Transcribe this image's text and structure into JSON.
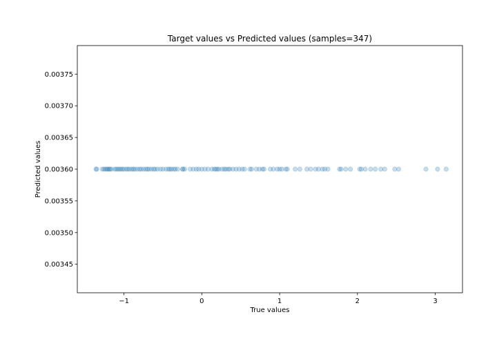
{
  "chart_data": {
    "type": "scatter",
    "title": "Target values vs Predicted values (samples=347)",
    "xlabel": "True values",
    "ylabel": "Predicted values",
    "xlim": [
      -1.6,
      3.35
    ],
    "ylim": [
      0.003405,
      0.003795
    ],
    "xticks": [
      -1,
      0,
      1,
      2,
      3
    ],
    "xtick_labels": [
      "−1",
      "0",
      "1",
      "2",
      "3"
    ],
    "yticks": [
      0.00345,
      0.0035,
      0.00355,
      0.0036,
      0.00365,
      0.0037,
      0.00375
    ],
    "ytick_labels": [
      "0.00345",
      "0.00350",
      "0.00355",
      "0.00360",
      "0.00365",
      "0.00370",
      "0.00375"
    ],
    "grid": false,
    "marker_color": "#1f77b4",
    "marker_alpha": 0.25,
    "points": [
      {
        "x": -1.36,
        "y": 0.0036
      },
      {
        "x": -1.35,
        "y": 0.0036
      },
      {
        "x": -1.28,
        "y": 0.0036
      },
      {
        "x": -1.26,
        "y": 0.0036
      },
      {
        "x": -1.24,
        "y": 0.0036
      },
      {
        "x": -1.22,
        "y": 0.0036
      },
      {
        "x": -1.21,
        "y": 0.0036
      },
      {
        "x": -1.19,
        "y": 0.0036
      },
      {
        "x": -1.18,
        "y": 0.0036
      },
      {
        "x": -1.16,
        "y": 0.0036
      },
      {
        "x": -1.12,
        "y": 0.0036
      },
      {
        "x": -1.1,
        "y": 0.0036
      },
      {
        "x": -1.08,
        "y": 0.0036
      },
      {
        "x": -1.06,
        "y": 0.0036
      },
      {
        "x": -1.04,
        "y": 0.0036
      },
      {
        "x": -1.02,
        "y": 0.0036
      },
      {
        "x": -1.0,
        "y": 0.0036
      },
      {
        "x": -0.97,
        "y": 0.0036
      },
      {
        "x": -0.95,
        "y": 0.0036
      },
      {
        "x": -0.93,
        "y": 0.0036
      },
      {
        "x": -0.9,
        "y": 0.0036
      },
      {
        "x": -0.88,
        "y": 0.0036
      },
      {
        "x": -0.86,
        "y": 0.0036
      },
      {
        "x": -0.83,
        "y": 0.0036
      },
      {
        "x": -0.8,
        "y": 0.0036
      },
      {
        "x": -0.78,
        "y": 0.0036
      },
      {
        "x": -0.75,
        "y": 0.0036
      },
      {
        "x": -0.72,
        "y": 0.0036
      },
      {
        "x": -0.7,
        "y": 0.0036
      },
      {
        "x": -0.68,
        "y": 0.0036
      },
      {
        "x": -0.65,
        "y": 0.0036
      },
      {
        "x": -0.62,
        "y": 0.0036
      },
      {
        "x": -0.6,
        "y": 0.0036
      },
      {
        "x": -0.57,
        "y": 0.0036
      },
      {
        "x": -0.53,
        "y": 0.0036
      },
      {
        "x": -0.5,
        "y": 0.0036
      },
      {
        "x": -0.46,
        "y": 0.0036
      },
      {
        "x": -0.43,
        "y": 0.0036
      },
      {
        "x": -0.41,
        "y": 0.0036
      },
      {
        "x": -0.39,
        "y": 0.0036
      },
      {
        "x": -0.36,
        "y": 0.0036
      },
      {
        "x": -0.34,
        "y": 0.0036
      },
      {
        "x": -0.31,
        "y": 0.0036
      },
      {
        "x": -0.25,
        "y": 0.0036
      },
      {
        "x": -0.24,
        "y": 0.0036
      },
      {
        "x": -0.22,
        "y": 0.0036
      },
      {
        "x": -0.15,
        "y": 0.0036
      },
      {
        "x": -0.11,
        "y": 0.0036
      },
      {
        "x": -0.07,
        "y": 0.0036
      },
      {
        "x": -0.04,
        "y": 0.0036
      },
      {
        "x": 0.0,
        "y": 0.0036
      },
      {
        "x": 0.04,
        "y": 0.0036
      },
      {
        "x": 0.08,
        "y": 0.0036
      },
      {
        "x": 0.13,
        "y": 0.0036
      },
      {
        "x": 0.16,
        "y": 0.0036
      },
      {
        "x": 0.18,
        "y": 0.0036
      },
      {
        "x": 0.2,
        "y": 0.0036
      },
      {
        "x": 0.22,
        "y": 0.0036
      },
      {
        "x": 0.26,
        "y": 0.0036
      },
      {
        "x": 0.29,
        "y": 0.0036
      },
      {
        "x": 0.31,
        "y": 0.0036
      },
      {
        "x": 0.34,
        "y": 0.0036
      },
      {
        "x": 0.36,
        "y": 0.0036
      },
      {
        "x": 0.4,
        "y": 0.0036
      },
      {
        "x": 0.44,
        "y": 0.0036
      },
      {
        "x": 0.48,
        "y": 0.0036
      },
      {
        "x": 0.52,
        "y": 0.0036
      },
      {
        "x": 0.55,
        "y": 0.0036
      },
      {
        "x": 0.62,
        "y": 0.0036
      },
      {
        "x": 0.64,
        "y": 0.0036
      },
      {
        "x": 0.7,
        "y": 0.0036
      },
      {
        "x": 0.74,
        "y": 0.0036
      },
      {
        "x": 0.78,
        "y": 0.0036
      },
      {
        "x": 0.8,
        "y": 0.0036
      },
      {
        "x": 0.88,
        "y": 0.0036
      },
      {
        "x": 0.92,
        "y": 0.0036
      },
      {
        "x": 0.97,
        "y": 0.0036
      },
      {
        "x": 1.0,
        "y": 0.0036
      },
      {
        "x": 1.03,
        "y": 0.0036
      },
      {
        "x": 1.08,
        "y": 0.0036
      },
      {
        "x": 1.1,
        "y": 0.0036
      },
      {
        "x": 1.2,
        "y": 0.0036
      },
      {
        "x": 1.26,
        "y": 0.0036
      },
      {
        "x": 1.35,
        "y": 0.0036
      },
      {
        "x": 1.4,
        "y": 0.0036
      },
      {
        "x": 1.46,
        "y": 0.0036
      },
      {
        "x": 1.5,
        "y": 0.0036
      },
      {
        "x": 1.55,
        "y": 0.0036
      },
      {
        "x": 1.58,
        "y": 0.0036
      },
      {
        "x": 1.62,
        "y": 0.0036
      },
      {
        "x": 1.77,
        "y": 0.0036
      },
      {
        "x": 1.79,
        "y": 0.0036
      },
      {
        "x": 1.85,
        "y": 0.0036
      },
      {
        "x": 1.91,
        "y": 0.0036
      },
      {
        "x": 2.03,
        "y": 0.0036
      },
      {
        "x": 2.05,
        "y": 0.0036
      },
      {
        "x": 2.1,
        "y": 0.0036
      },
      {
        "x": 2.17,
        "y": 0.0036
      },
      {
        "x": 2.23,
        "y": 0.0036
      },
      {
        "x": 2.3,
        "y": 0.0036
      },
      {
        "x": 2.35,
        "y": 0.0036
      },
      {
        "x": 2.48,
        "y": 0.0036
      },
      {
        "x": 2.53,
        "y": 0.0036
      },
      {
        "x": 2.88,
        "y": 0.0036
      },
      {
        "x": 3.03,
        "y": 0.0036
      },
      {
        "x": 3.14,
        "y": 0.0036
      }
    ]
  }
}
